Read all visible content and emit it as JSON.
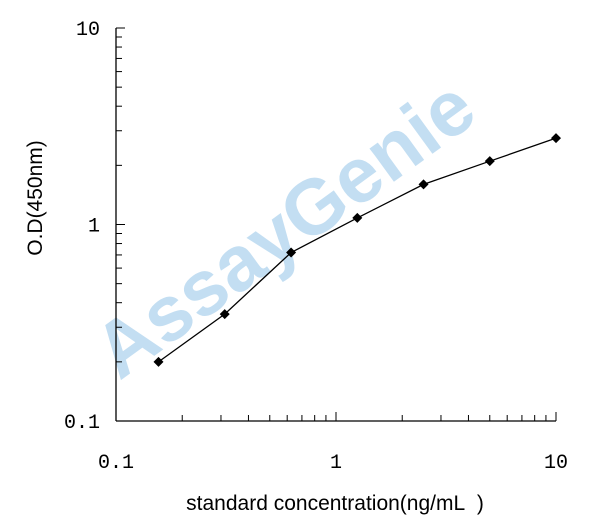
{
  "chart_data": {
    "type": "line",
    "x_scale": "log",
    "y_scale": "log",
    "xlabel": "standard concentration(ng/mL  )",
    "ylabel": "O.D(450nm)",
    "xlim": [
      0.1,
      10
    ],
    "ylim": [
      0.1,
      10
    ],
    "x_tick_labels": [
      "0.1",
      "1",
      "10"
    ],
    "y_tick_labels": [
      "0.1",
      "1",
      "10"
    ],
    "grid": false,
    "series": [
      {
        "x": [
          0.156,
          0.312,
          0.625,
          1.25,
          2.5,
          5,
          10
        ],
        "y": [
          0.2,
          0.35,
          0.72,
          1.08,
          1.6,
          2.1,
          2.75
        ]
      }
    ],
    "line_color": "#000000",
    "marker": "diamond"
  },
  "watermark": {
    "text": "AssayGenie",
    "color": "#9cc9ea"
  }
}
